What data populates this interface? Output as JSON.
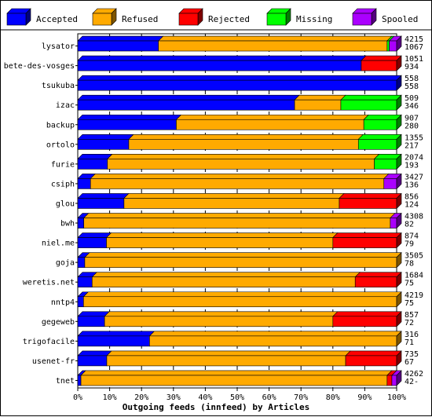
{
  "chart_data": {
    "type": "bar",
    "orientation": "horizontal",
    "stacked": true,
    "percent_stacked": true,
    "title": "",
    "xlabel": "Outgoing feeds (innfeed) by Articles",
    "ylabel": "",
    "xlim": [
      0,
      100
    ],
    "x_ticks": [
      "0%",
      "10%",
      "20%",
      "30%",
      "40%",
      "50%",
      "60%",
      "70%",
      "80%",
      "90%",
      "100%"
    ],
    "grid": "vertical dashed",
    "legend_position": "top",
    "series": [
      {
        "name": "Accepted",
        "color": "#0000ff",
        "side_color": "#00007f"
      },
      {
        "name": "Refused",
        "color": "#ffaa00",
        "side_color": "#7f5500"
      },
      {
        "name": "Rejected",
        "color": "#ff0000",
        "side_color": "#7f0000"
      },
      {
        "name": "Missing",
        "color": "#00ff00",
        "side_color": "#007f00"
      },
      {
        "name": "Spooled",
        "color": "#aa00ff",
        "side_color": "#55007f"
      }
    ],
    "categories": [
      "lysator",
      "bete-des-vosges",
      "tsukuba",
      "izac",
      "backup",
      "ortolo",
      "furie",
      "csiph",
      "glou",
      "bwh",
      "niel.me",
      "goja",
      "weretis.net",
      "nntp4",
      "gegeweb",
      "trigofacile",
      "usenet-fr",
      "tnet"
    ],
    "rows": [
      {
        "label": "lysator",
        "total": "4215",
        "accepted_count": "1067",
        "pct": [
          25.3,
          71.7,
          0,
          0.7,
          2.3
        ]
      },
      {
        "label": "bete-des-vosges",
        "total": "1051",
        "accepted_count": "934",
        "pct": [
          88.9,
          0,
          11.1,
          0,
          0
        ]
      },
      {
        "label": "tsukuba",
        "total": "558",
        "accepted_count": "558",
        "pct": [
          100,
          0,
          0,
          0,
          0
        ]
      },
      {
        "label": "izac",
        "total": "509",
        "accepted_count": "346",
        "pct": [
          68.0,
          14.5,
          0,
          17.5,
          0
        ]
      },
      {
        "label": "backup",
        "total": "907",
        "accepted_count": "280",
        "pct": [
          30.9,
          58.8,
          0,
          10.3,
          0
        ]
      },
      {
        "label": "ortolo",
        "total": "1355",
        "accepted_count": "217",
        "pct": [
          16.0,
          72.0,
          0,
          12.0,
          0
        ]
      },
      {
        "label": "furie",
        "total": "2074",
        "accepted_count": "193",
        "pct": [
          9.3,
          83.7,
          0,
          7.0,
          0
        ]
      },
      {
        "label": "csiph",
        "total": "3427",
        "accepted_count": "136",
        "pct": [
          4.0,
          92.0,
          0,
          0,
          4.0
        ]
      },
      {
        "label": "glou",
        "total": "856",
        "accepted_count": "124",
        "pct": [
          14.5,
          67.5,
          18.0,
          0,
          0
        ]
      },
      {
        "label": "bwh",
        "total": "4308",
        "accepted_count": "82",
        "pct": [
          1.9,
          96.1,
          0,
          0,
          2.0
        ]
      },
      {
        "label": "niel.me",
        "total": "874",
        "accepted_count": "79",
        "pct": [
          9.0,
          71.0,
          20.0,
          0,
          0
        ]
      },
      {
        "label": "goja",
        "total": "3505",
        "accepted_count": "78",
        "pct": [
          2.2,
          97.8,
          0,
          0,
          0
        ]
      },
      {
        "label": "weretis.net",
        "total": "1684",
        "accepted_count": "75",
        "pct": [
          4.5,
          82.5,
          13.0,
          0,
          0
        ]
      },
      {
        "label": "nntp4",
        "total": "4219",
        "accepted_count": "75",
        "pct": [
          1.8,
          98.2,
          0,
          0,
          0
        ]
      },
      {
        "label": "gegeweb",
        "total": "857",
        "accepted_count": "72",
        "pct": [
          8.4,
          71.6,
          20.0,
          0,
          0
        ]
      },
      {
        "label": "trigofacile",
        "total": "316",
        "accepted_count": "71",
        "pct": [
          22.5,
          77.5,
          0,
          0,
          0
        ]
      },
      {
        "label": "usenet-fr",
        "total": "735",
        "accepted_count": "67",
        "pct": [
          9.1,
          74.9,
          16.0,
          0,
          0
        ]
      },
      {
        "label": "tnet",
        "total": "4262",
        "accepted_count": "42-",
        "pct": [
          1.0,
          96.0,
          1.5,
          0,
          1.5
        ]
      }
    ]
  }
}
